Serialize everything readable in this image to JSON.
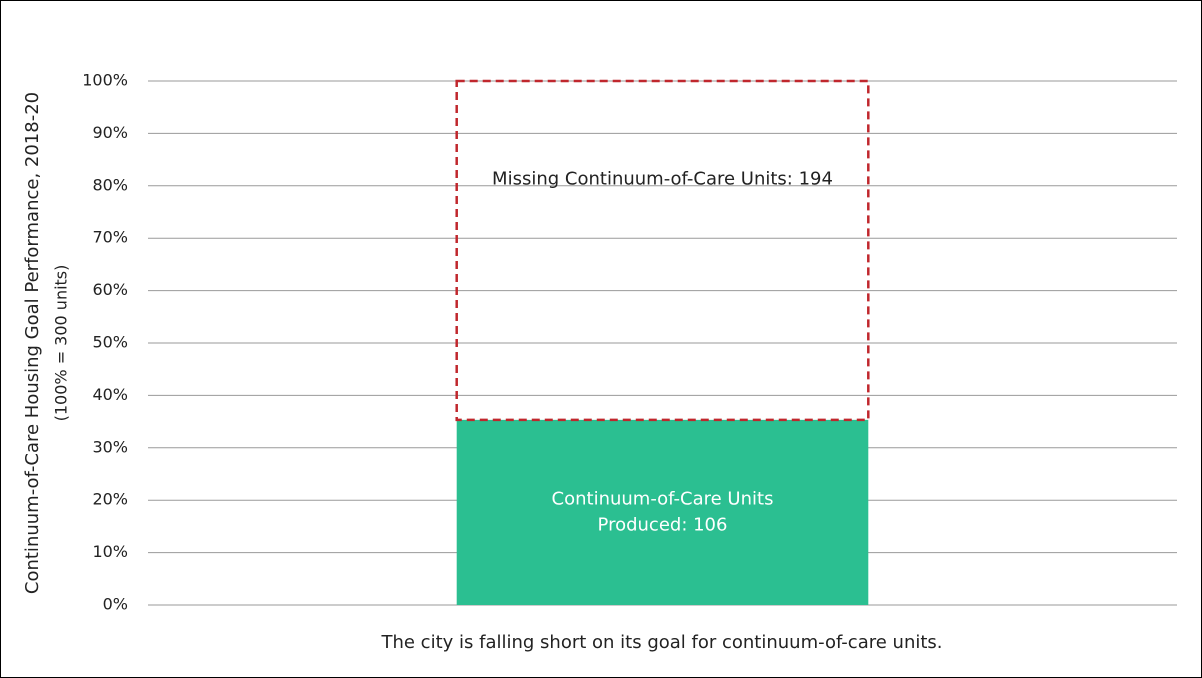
{
  "chart_data": {
    "type": "stacked-bar",
    "ylabel": "Continuum-of-Care Housing Goal Performance, 2018-20",
    "ylabel_note": "(100% = 300 units)",
    "caption": "The city is falling short on its goal for continuum-of-care units.",
    "categories": [
      null
    ],
    "series": [
      {
        "color": "#2bbf91",
        "style": "solid",
        "values": [
          35.33
        ],
        "value_labels": [
          [
            "Continuum-of-Care Units",
            "Produced: 106"
          ]
        ]
      },
      {
        "color": "#c0272d",
        "style": "dashed",
        "values": [
          64.67
        ],
        "value_labels": [
          [
            "Missing Continuum-of-Care Units: 194"
          ]
        ]
      }
    ],
    "ylim": [
      0,
      100
    ],
    "yticks": [
      {
        "value": 0,
        "label": "0%"
      },
      {
        "value": 10,
        "label": "10%"
      },
      {
        "value": 20,
        "label": "20%"
      },
      {
        "value": 30,
        "label": "30%"
      },
      {
        "value": 40,
        "label": "40%"
      },
      {
        "value": 50,
        "label": "50%"
      },
      {
        "value": 60,
        "label": "60%"
      },
      {
        "value": 70,
        "label": "70%"
      },
      {
        "value": 80,
        "label": "80%"
      },
      {
        "value": 90,
        "label": "90%"
      },
      {
        "value": 100,
        "label": "100%"
      }
    ],
    "grid": true
  }
}
